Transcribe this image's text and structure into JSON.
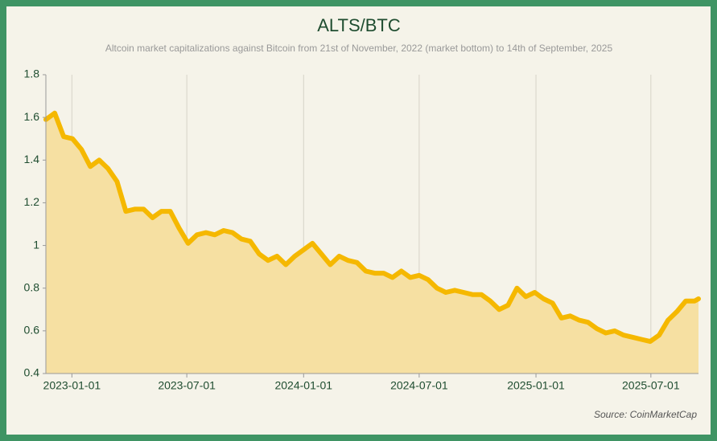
{
  "chart_data": {
    "type": "area-line",
    "title": "ALTS/BTC",
    "subtitle": "Altcoin market capitalizations against Bitcoin from 21st of November, 2022 (market bottom) to 14th of September, 2025",
    "source": "Source: CoinMarketCap",
    "x": [
      "2022-11-21",
      "2022-12-05",
      "2022-12-19",
      "2023-01-02",
      "2023-01-16",
      "2023-01-30",
      "2023-02-13",
      "2023-02-27",
      "2023-03-13",
      "2023-03-27",
      "2023-04-10",
      "2023-04-24",
      "2023-05-08",
      "2023-05-22",
      "2023-06-05",
      "2023-06-19",
      "2023-07-03",
      "2023-07-17",
      "2023-07-31",
      "2023-08-14",
      "2023-08-28",
      "2023-09-11",
      "2023-09-25",
      "2023-10-09",
      "2023-10-23",
      "2023-11-06",
      "2023-11-20",
      "2023-12-04",
      "2023-12-18",
      "2024-01-01",
      "2024-01-15",
      "2024-01-29",
      "2024-02-12",
      "2024-02-26",
      "2024-03-11",
      "2024-03-25",
      "2024-04-08",
      "2024-04-22",
      "2024-05-06",
      "2024-05-20",
      "2024-06-03",
      "2024-06-17",
      "2024-07-01",
      "2024-07-15",
      "2024-07-29",
      "2024-08-12",
      "2024-08-26",
      "2024-09-09",
      "2024-09-23",
      "2024-10-07",
      "2024-10-21",
      "2024-11-04",
      "2024-11-18",
      "2024-12-02",
      "2024-12-16",
      "2024-12-30",
      "2025-01-13",
      "2025-01-27",
      "2025-02-10",
      "2025-02-24",
      "2025-03-10",
      "2025-03-24",
      "2025-04-07",
      "2025-04-21",
      "2025-05-05",
      "2025-05-19",
      "2025-06-02",
      "2025-06-16",
      "2025-06-30",
      "2025-07-14",
      "2025-07-28",
      "2025-08-11",
      "2025-08-25",
      "2025-09-08",
      "2025-09-14"
    ],
    "values": [
      1.59,
      1.62,
      1.51,
      1.5,
      1.45,
      1.37,
      1.4,
      1.36,
      1.3,
      1.16,
      1.17,
      1.17,
      1.13,
      1.16,
      1.16,
      1.08,
      1.01,
      1.05,
      1.06,
      1.05,
      1.07,
      1.06,
      1.03,
      1.02,
      0.96,
      0.93,
      0.95,
      0.91,
      0.95,
      0.98,
      1.01,
      0.96,
      0.91,
      0.95,
      0.93,
      0.92,
      0.88,
      0.87,
      0.87,
      0.85,
      0.88,
      0.85,
      0.86,
      0.84,
      0.8,
      0.78,
      0.79,
      0.78,
      0.77,
      0.77,
      0.74,
      0.7,
      0.72,
      0.8,
      0.76,
      0.78,
      0.75,
      0.73,
      0.66,
      0.67,
      0.65,
      0.64,
      0.61,
      0.59,
      0.6,
      0.58,
      0.57,
      0.56,
      0.55,
      0.58,
      0.65,
      0.69,
      0.74,
      0.74,
      0.75
    ],
    "color": "#f5b800",
    "fill_color": "#f6e0a2",
    "xlim": [
      "2022-11-21",
      "2025-09-14"
    ],
    "xticks": [
      "2023-01-01",
      "2023-07-01",
      "2024-01-01",
      "2024-07-01",
      "2025-01-01",
      "2025-07-01"
    ],
    "ylim": [
      0.4,
      1.8
    ],
    "yticks": [
      0.4,
      0.6,
      0.8,
      1,
      1.2,
      1.4,
      1.6,
      1.8
    ],
    "grid": "x"
  }
}
